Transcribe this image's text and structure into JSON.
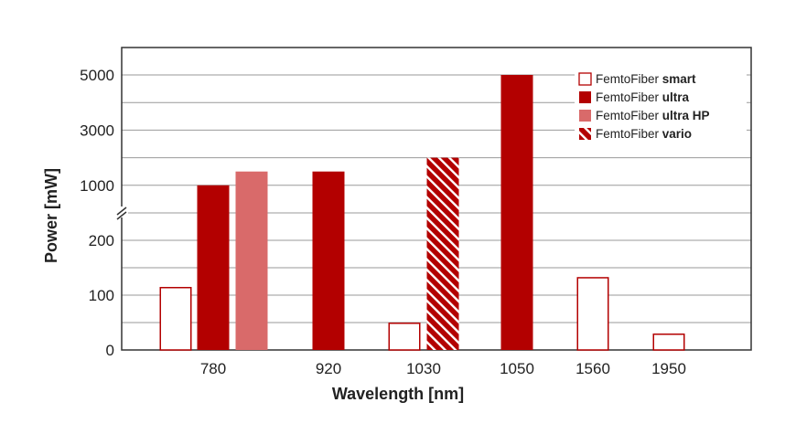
{
  "chart_data": {
    "type": "bar",
    "title": "",
    "xlabel": "Wavelength [nm]",
    "ylabel": "Power [mW]",
    "y_axis": {
      "broken": true,
      "lower_segment": {
        "range": [
          0,
          250
        ],
        "ticks": [
          "0",
          "100",
          "200"
        ],
        "tick_values": [
          0,
          100,
          200
        ]
      },
      "upper_segment": {
        "range": [
          0,
          5000
        ],
        "ticks": [
          "1000",
          "3000",
          "5000"
        ],
        "tick_values": [
          1000,
          3000,
          5000
        ]
      }
    },
    "categories": [
      "780",
      "920",
      "1030",
      "1050",
      "1560",
      "1950"
    ],
    "series": [
      {
        "name": "FemtoFiber smart",
        "name_regular": "FemtoFiber ",
        "name_bold": "smart",
        "style": "outline",
        "color": "#b30000",
        "points": [
          {
            "category": "780",
            "value": 115
          },
          {
            "category": "1030",
            "value": 50
          },
          {
            "category": "1560",
            "value": 133
          },
          {
            "category": "1950",
            "value": 30
          }
        ]
      },
      {
        "name": "FemtoFiber ultra",
        "name_regular": "FemtoFiber ",
        "name_bold": "ultra",
        "style": "solid",
        "color": "#b30000",
        "points": [
          {
            "category": "780",
            "value": 1000
          },
          {
            "category": "920",
            "value": 1500
          },
          {
            "category": "1050",
            "value": 5000
          }
        ]
      },
      {
        "name": "FemtoFiber ultra HP",
        "name_regular": "FemtoFiber ",
        "name_bold": "ultra HP",
        "style": "solid",
        "color": "#d96a6a",
        "points": [
          {
            "category": "780",
            "value": 1500
          }
        ]
      },
      {
        "name": "FemtoFiber vario",
        "name_regular": "FemtoFiber ",
        "name_bold": "vario",
        "style": "hatched",
        "color": "#b30000",
        "points": [
          {
            "category": "1030",
            "value": 2000
          }
        ]
      }
    ],
    "grid": true,
    "legend_position": "top-right"
  }
}
